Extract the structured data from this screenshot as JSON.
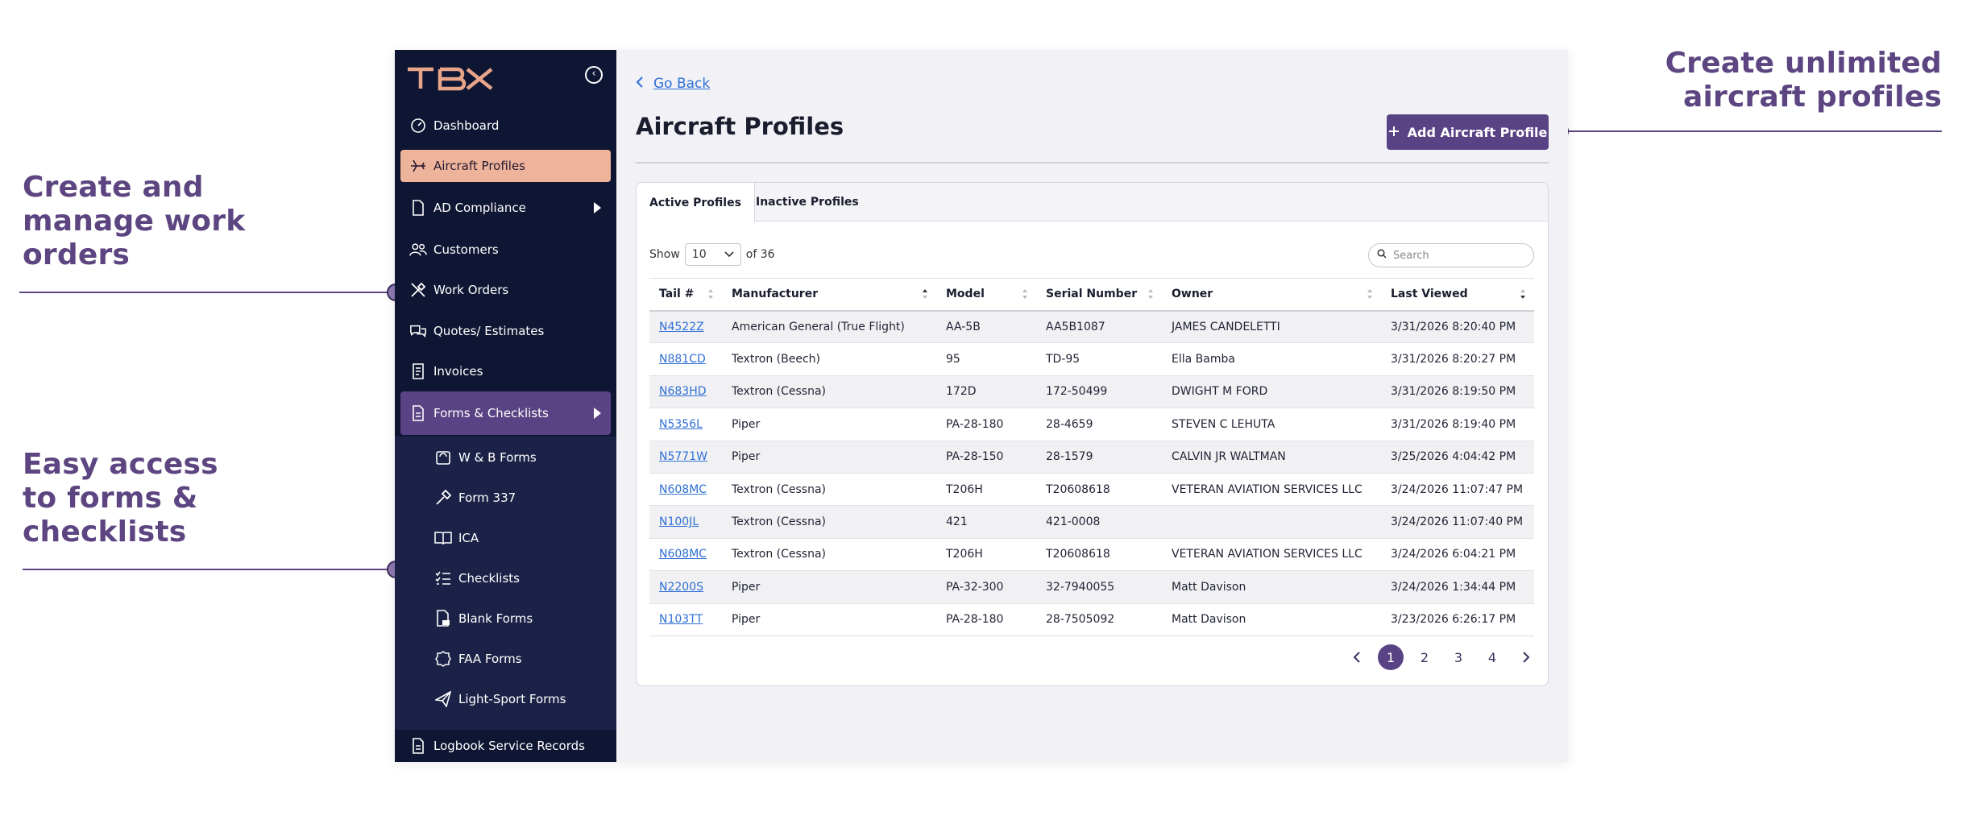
{
  "callouts": {
    "work_orders": "Create and manage work orders",
    "forms": "Easy access to forms & checklists",
    "profiles": "Create unlimited aircraft profiles"
  },
  "colors": {
    "brand_purple": "#5a4384",
    "sidebar_bg": "#0f1633",
    "active_nav": "#eeb39b",
    "link": "#2f6fd6",
    "logo_orange": "#e9a58a"
  },
  "sidebar": {
    "logo": "TBX",
    "items": [
      {
        "label": "Dashboard",
        "icon": "dashboard-icon"
      },
      {
        "label": "Aircraft Profiles",
        "icon": "plane-icon"
      },
      {
        "label": "AD Compliance",
        "icon": "document-icon"
      },
      {
        "label": "Customers",
        "icon": "users-icon"
      },
      {
        "label": "Work Orders",
        "icon": "tools-icon"
      },
      {
        "label": "Quotes/ Estimates",
        "icon": "chat-icon"
      },
      {
        "label": "Invoices",
        "icon": "invoice-icon"
      },
      {
        "label": "Forms & Checklists",
        "icon": "form-icon"
      }
    ],
    "subitems": [
      {
        "label": "W & B Forms",
        "icon": "scale-icon"
      },
      {
        "label": "Form 337",
        "icon": "hammer-icon"
      },
      {
        "label": "ICA",
        "icon": "book-icon"
      },
      {
        "label": "Checklists",
        "icon": "checklist-icon"
      },
      {
        "label": "Blank Forms",
        "icon": "pdf-icon"
      },
      {
        "label": "FAA Forms",
        "icon": "badge-icon"
      },
      {
        "label": "Light-Sport Forms",
        "icon": "paper-plane-icon"
      }
    ],
    "bottom_item": {
      "label": "Logbook Service Records",
      "icon": "logbook-icon"
    }
  },
  "main": {
    "go_back": "Go Back",
    "title": "Aircraft Profiles",
    "add_button": "Add Aircraft Profile",
    "tabs": [
      "Active Profiles",
      "Inactive Profiles"
    ],
    "show_label": "Show",
    "page_size": "10",
    "of_total": "of 36",
    "search_placeholder": "Search",
    "columns": [
      "Tail #",
      "Manufacturer",
      "Model",
      "Serial Number",
      "Owner",
      "Last Viewed"
    ],
    "rows": [
      [
        "N4522Z",
        "American General (True Flight)",
        "AA-5B",
        "AA5B1087",
        "JAMES CANDELETTI",
        "3/31/2026 8:20:40 PM"
      ],
      [
        "N881CD",
        "Textron (Beech)",
        "95",
        "TD-95",
        "Ella Bamba",
        "3/31/2026 8:20:27 PM"
      ],
      [
        "N683HD",
        "Textron (Cessna)",
        "172D",
        "172-50499",
        "DWIGHT M FORD",
        "3/31/2026 8:19:50 PM"
      ],
      [
        "N5356L",
        "Piper",
        "PA-28-180",
        "28-4659",
        "STEVEN C LEHUTA",
        "3/31/2026 8:19:40 PM"
      ],
      [
        "N5771W",
        "Piper",
        "PA-28-150",
        "28-1579",
        "CALVIN JR WALTMAN",
        "3/25/2026 4:04:42 PM"
      ],
      [
        "N608MC",
        "Textron (Cessna)",
        "T206H",
        "T20608618",
        "VETERAN AVIATION SERVICES LLC",
        "3/24/2026 11:07:47 PM"
      ],
      [
        "N100JL",
        "Textron (Cessna)",
        "421",
        "421-0008",
        "",
        "3/24/2026 11:07:40 PM"
      ],
      [
        "N608MC",
        "Textron (Cessna)",
        "T206H",
        "T20608618",
        "VETERAN AVIATION SERVICES LLC",
        "3/24/2026 6:04:21 PM"
      ],
      [
        "N2200S",
        "Piper",
        "PA-32-300",
        "32-7940055",
        "Matt Davison",
        "3/24/2026 1:34:44 PM"
      ],
      [
        "N103TT",
        "Piper",
        "PA-28-180",
        "28-7505092",
        "Matt Davison",
        "3/23/2026 6:26:17 PM"
      ]
    ],
    "pages": [
      "1",
      "2",
      "3",
      "4"
    ],
    "current_page": "1"
  }
}
